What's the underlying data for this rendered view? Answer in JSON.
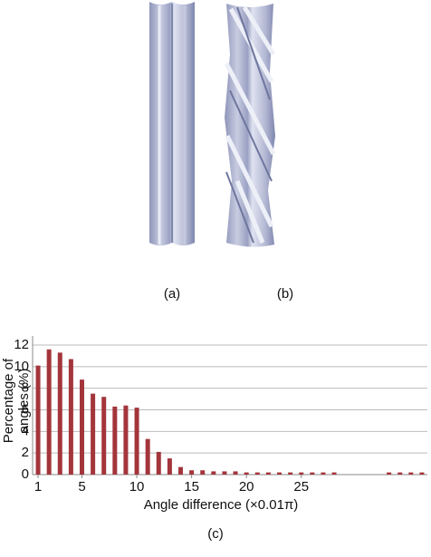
{
  "panel_labels": {
    "a": "(a)",
    "b": "(b)"
  },
  "caption": "(c)",
  "chart_data": {
    "type": "bar",
    "ylabel": [
      "Percentage of",
      "angles (%)"
    ],
    "xlabel": "Angle difference (×0.01π)",
    "x": [
      1,
      2,
      3,
      4,
      5,
      6,
      7,
      8,
      9,
      10,
      11,
      12,
      13,
      14,
      15,
      16,
      17,
      18,
      19,
      20,
      21,
      22,
      23,
      24,
      25,
      26,
      27,
      28,
      29,
      30,
      31,
      32,
      33,
      34,
      35,
      36
    ],
    "values": [
      10.1,
      11.6,
      11.3,
      10.7,
      8.8,
      7.5,
      7.2,
      6.3,
      6.4,
      6.2,
      3.3,
      2.1,
      1.5,
      0.7,
      0.4,
      0.4,
      0.3,
      0.3,
      0.3,
      0.2,
      0.2,
      0.2,
      0.2,
      0.2,
      0.2,
      0.2,
      0.2,
      0.2,
      0,
      0,
      0,
      0,
      0.2,
      0.2,
      0.2,
      0.2
    ],
    "color": "#a3353b",
    "xlim": [
      0.5,
      36.5
    ],
    "xticks": [
      1,
      5,
      10,
      15,
      20,
      25
    ],
    "ylim": [
      0,
      12
    ],
    "yticks": [
      0,
      2,
      4,
      6,
      8,
      10,
      12
    ],
    "grid": true
  }
}
